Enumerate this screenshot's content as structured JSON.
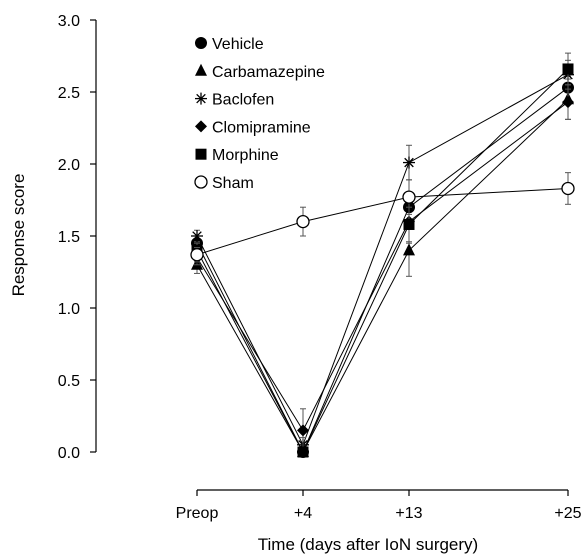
{
  "chart_data": {
    "type": "line",
    "categories": [
      "Preop",
      "+4",
      "+13",
      "+25"
    ],
    "xlabel": "Time (days after IoN surgery)",
    "ylabel": "Response score",
    "ylim": [
      0,
      3
    ],
    "yticks": [
      "0.0",
      "0.5",
      "1.0",
      "1.5",
      "2.0",
      "2.5",
      "3.0"
    ],
    "grid": false,
    "legend_position": "top-left",
    "series": [
      {
        "name": "Vehicle",
        "marker": "circle-filled",
        "values": [
          1.45,
          0.0,
          1.7,
          2.53
        ],
        "errors": [
          0.05,
          0.0,
          0.1,
          0.08
        ]
      },
      {
        "name": "Carbamazepine",
        "marker": "triangle-filled",
        "values": [
          1.3,
          0.0,
          1.4,
          2.45
        ],
        "errors": [
          0.06,
          0.0,
          0.18,
          0.14
        ]
      },
      {
        "name": "Baclofen",
        "marker": "asterisk",
        "values": [
          1.5,
          0.05,
          2.01,
          2.62
        ],
        "errors": [
          0.04,
          0.05,
          0.12,
          0.1
        ]
      },
      {
        "name": "Clomipramine",
        "marker": "diamond-filled",
        "values": [
          1.35,
          0.15,
          1.6,
          2.43
        ],
        "errors": [
          0.05,
          0.15,
          0.15,
          0.12
        ]
      },
      {
        "name": "Morphine",
        "marker": "square-filled",
        "values": [
          1.4,
          0.0,
          1.58,
          2.66
        ],
        "errors": [
          0.05,
          0.0,
          0.12,
          0.11
        ]
      },
      {
        "name": "Sham",
        "marker": "circle-open",
        "values": [
          1.37,
          1.6,
          1.77,
          1.83
        ],
        "errors": [
          0.05,
          0.1,
          0.12,
          0.11
        ]
      }
    ]
  }
}
